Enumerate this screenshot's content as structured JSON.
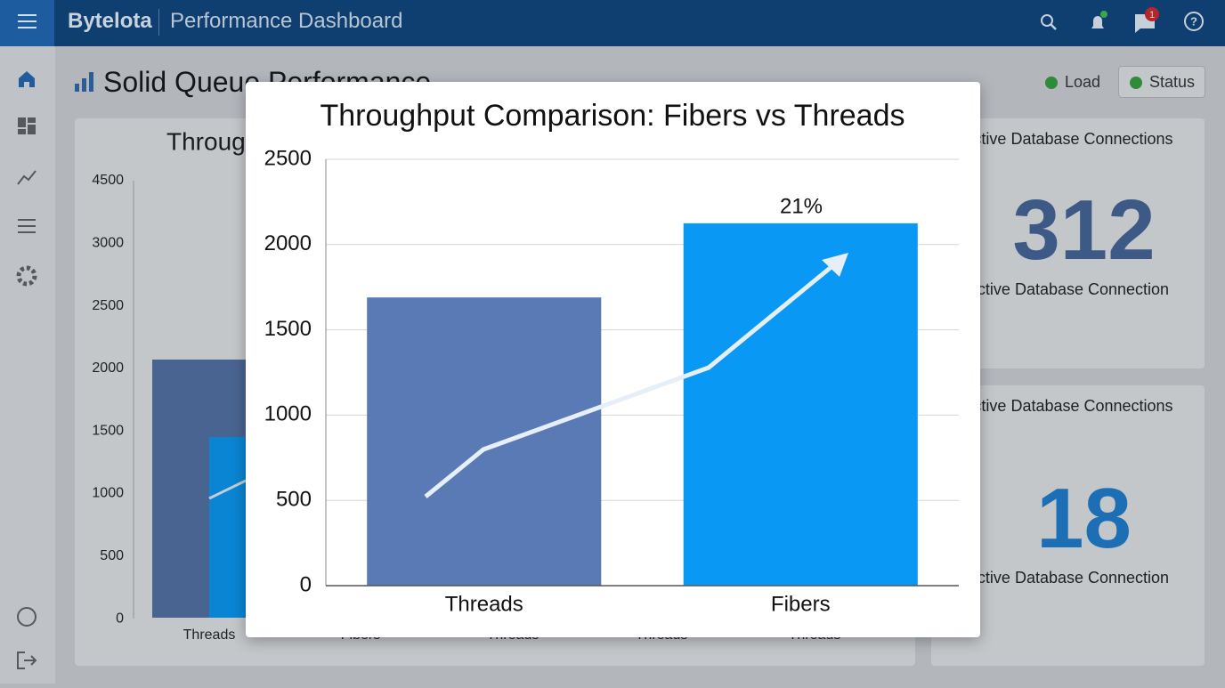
{
  "header": {
    "brand": "Bytelota",
    "title": "Performance Dashboard",
    "notification_badge": 1
  },
  "page": {
    "title": "Solid Queue Performance",
    "buttons": [
      "Load",
      "Status"
    ]
  },
  "background_chart": {
    "title": "Throughput",
    "axis_labels": [
      "4500",
      "3000",
      "2500",
      "2000",
      "1500",
      "1000",
      "500",
      "0"
    ],
    "categories": [
      "Threads",
      "Fibers",
      "Threads",
      "Threads",
      "Threads"
    ]
  },
  "cards": [
    {
      "title": "Active Database Connections",
      "value": 312,
      "caption": "Active Database Connection"
    },
    {
      "title": "Active Database Connections",
      "value": 18,
      "caption": "Active Database Connection"
    }
  ],
  "chart_data": {
    "type": "bar",
    "title": "Throughput Comparison: Fibers vs Threads",
    "categories": [
      "Threads",
      "Fibers"
    ],
    "values": [
      1690,
      2125
    ],
    "colors": [
      "#5a7ab5",
      "#0a98f5"
    ],
    "ylim": [
      0,
      2500
    ],
    "yticks": [
      0,
      500,
      1000,
      1500,
      2000,
      2500
    ],
    "grid": true,
    "annotations": [
      "21%"
    ]
  }
}
